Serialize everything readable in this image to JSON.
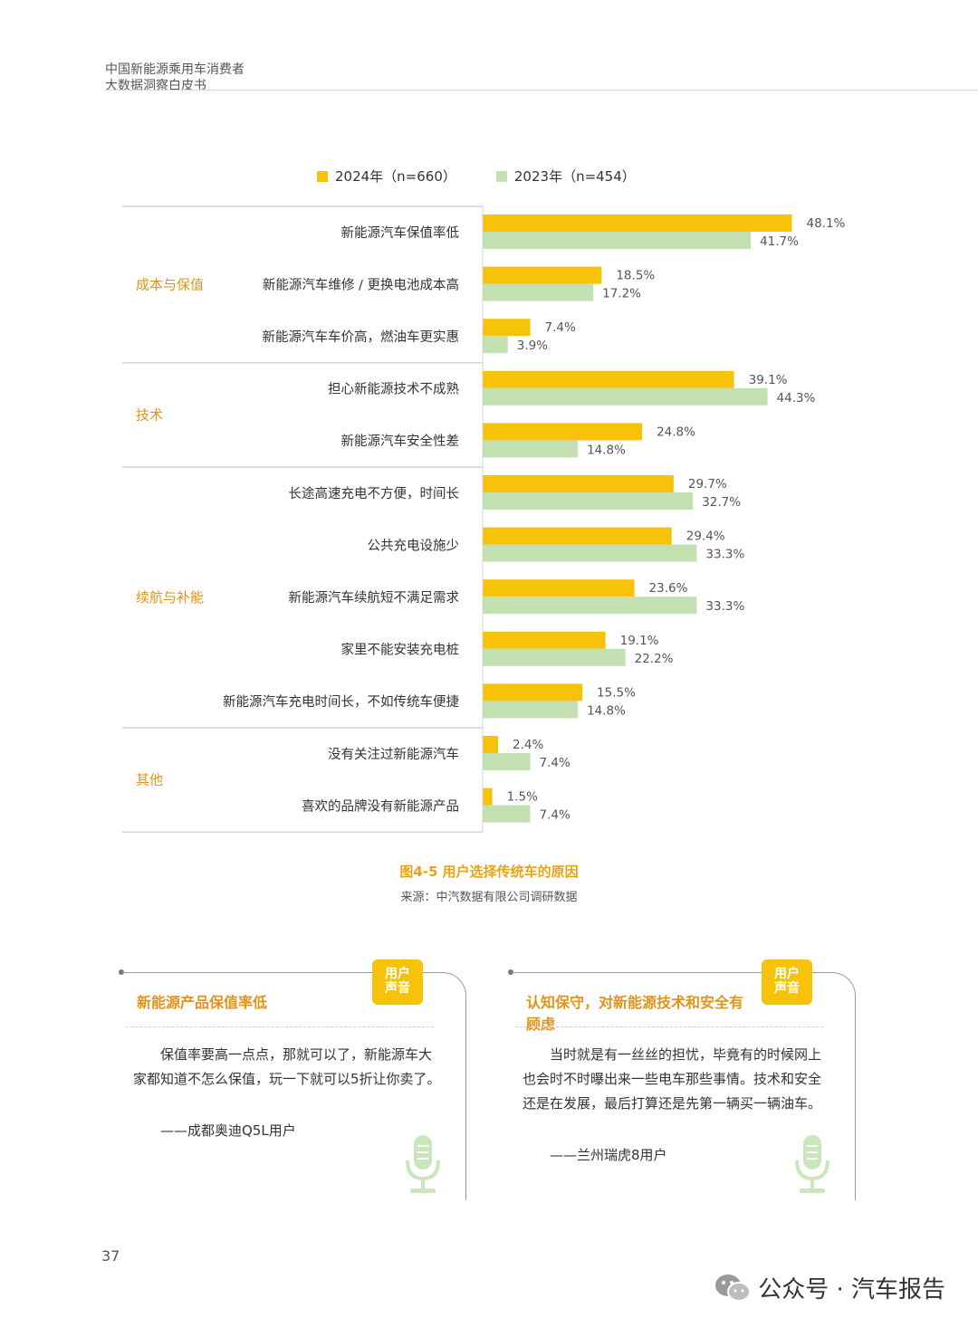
{
  "header": {
    "line1": "中国新能源乘用车消费者",
    "line2": "大数据洞察白皮书"
  },
  "legend": [
    {
      "label": "2024年（n=660）",
      "color": "#f6c20a"
    },
    {
      "label": "2023年（n=454）",
      "color": "#c2e0b2"
    }
  ],
  "chart_data": {
    "type": "bar",
    "orientation": "horizontal",
    "groups": [
      {
        "name": "成本与保值",
        "items": [
          {
            "label": "新能源汽车保值率低",
            "v2024": 48.1,
            "v2023": 41.7
          },
          {
            "label": "新能源汽车维修 / 更换电池成本高",
            "v2024": 18.5,
            "v2023": 17.2
          },
          {
            "label": "新能源汽车车价高，燃油车更实惠",
            "v2024": 7.4,
            "v2023": 3.9
          }
        ]
      },
      {
        "name": "技术",
        "items": [
          {
            "label": "担心新能源技术不成熟",
            "v2024": 39.1,
            "v2023": 44.3
          },
          {
            "label": "新能源汽车安全性差",
            "v2024": 24.8,
            "v2023": 14.8
          }
        ]
      },
      {
        "name": "续航与补能",
        "items": [
          {
            "label": "长途高速充电不方便，时间长",
            "v2024": 29.7,
            "v2023": 32.7
          },
          {
            "label": "公共充电设施少",
            "v2024": 29.4,
            "v2023": 33.3
          },
          {
            "label": "新能源汽车续航短不满足需求",
            "v2024": 23.6,
            "v2023": 33.3
          },
          {
            "label": "家里不能安装充电桩",
            "v2024": 19.1,
            "v2023": 22.2
          },
          {
            "label": "新能源汽车充电时间长，不如传统车便捷",
            "v2024": 15.5,
            "v2023": 14.8
          }
        ]
      },
      {
        "name": "其他",
        "items": [
          {
            "label": "没有关注过新能源汽车",
            "v2024": 2.4,
            "v2023": 7.4
          },
          {
            "label": "喜欢的品牌没有新能源产品",
            "v2024": 1.5,
            "v2023": 7.4
          }
        ]
      }
    ],
    "series": [
      {
        "name": "2024年（n=660）",
        "color": "#f6c20a"
      },
      {
        "name": "2023年（n=454）",
        "color": "#c2e0b2"
      }
    ],
    "unit": "%",
    "title": "图4-5 用户选择传统车的原因",
    "source": "来源：中汽数据有限公司调研数据"
  },
  "cards": [
    {
      "badge": "用户\n声音",
      "title": "新能源产品保值率低",
      "body": "保值率要高一点点，那就可以了，新能源车大家都知道不怎么保值，玩一下就可以5折让你卖了。",
      "signature": "——成都奥迪Q5L用户"
    },
    {
      "badge": "用户\n声音",
      "title": "认知保守，对新能源技术和安全有顾虑",
      "body": "当时就是有一丝丝的担忧，毕竟有的时候网上也会时不时曝出来一些电车那些事情。技术和安全还是在发展，最后打算还是先第一辆买一辆油车。",
      "signature": "——兰州瑞虎8用户"
    }
  ],
  "page_number": "37",
  "watermark": "公众号 · 汽车报告",
  "colors": {
    "accent": "#e8a317",
    "group_label": "#e3931a",
    "bar2024": "#f6c20a",
    "bar2023": "#c2e0b2"
  }
}
